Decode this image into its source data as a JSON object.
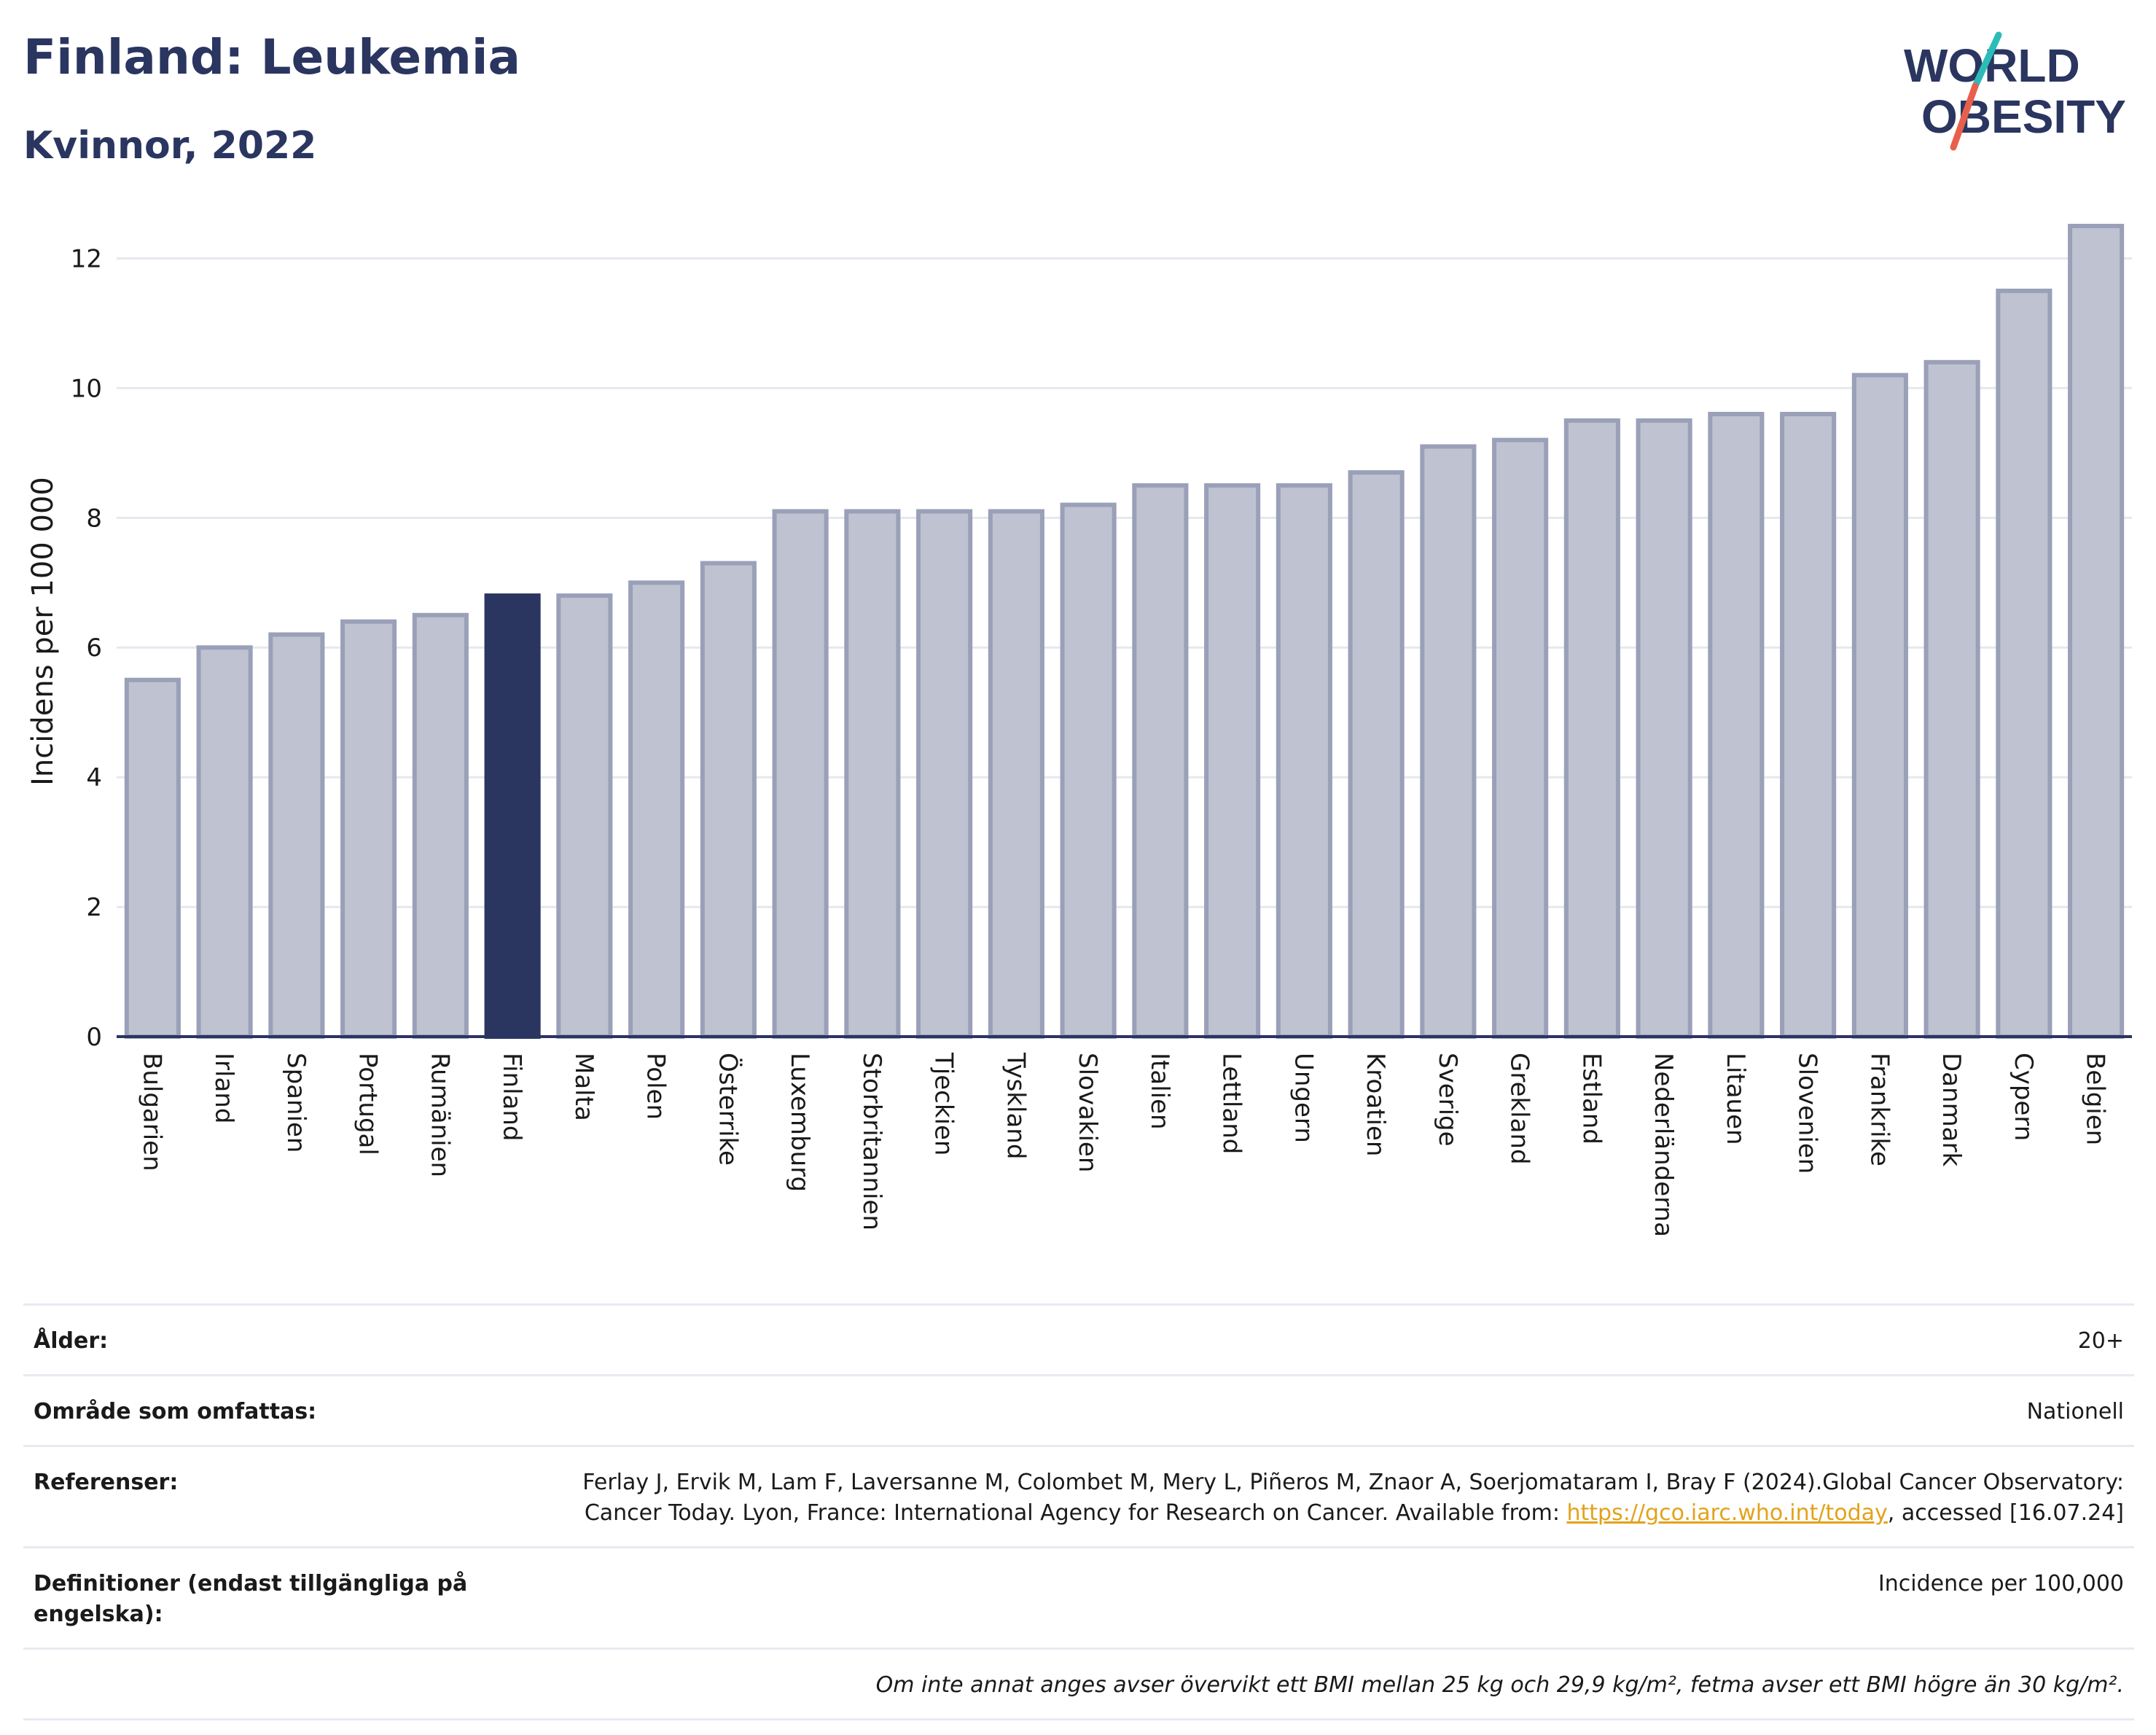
{
  "header": {
    "title": "Finland: Leukemia",
    "subtitle": "Kvinnor, 2022"
  },
  "logo": {
    "line1": "WORLD",
    "line2": "OBESITY",
    "colors": {
      "text": "#2a3560",
      "teal": "#2bbcb8",
      "red": "#e8604c"
    }
  },
  "chart_data": {
    "type": "bar",
    "categories": [
      "Bulgarien",
      "Irland",
      "Spanien",
      "Portugal",
      "Rumänien",
      "Finland",
      "Malta",
      "Polen",
      "Österrike",
      "Luxemburg",
      "Storbritannien",
      "Tjeckien",
      "Tyskland",
      "Slovakien",
      "Italien",
      "Lettland",
      "Ungern",
      "Kroatien",
      "Sverige",
      "Grekland",
      "Estland",
      "Nederländerna",
      "Litauen",
      "Slovenien",
      "Frankrike",
      "Danmark",
      "Cypern",
      "Belgien"
    ],
    "values": [
      5.5,
      6.0,
      6.2,
      6.4,
      6.5,
      6.8,
      6.8,
      7.0,
      7.3,
      8.1,
      8.1,
      8.1,
      8.1,
      8.2,
      8.5,
      8.5,
      8.5,
      8.7,
      9.1,
      9.2,
      9.5,
      9.5,
      9.6,
      9.6,
      10.2,
      10.4,
      11.5,
      12.5
    ],
    "highlight": "Finland",
    "ylabel": "Incidens per 100 000",
    "xlabel": "",
    "ylim": [
      0,
      12.5
    ],
    "yticks": [
      0,
      2,
      4,
      6,
      8,
      10,
      12
    ],
    "grid": true,
    "colors": {
      "bar": "#bfc2d0",
      "bar_stroke": "#9aa0b8",
      "highlight": "#2a3560",
      "grid": "#e6e8ee",
      "axis": "#2a3560"
    }
  },
  "meta": {
    "age_label": "Ålder:",
    "age_value": "20+",
    "area_label": "Område som omfattas:",
    "area_value": "Nationell",
    "refs_label": "Referenser:",
    "refs_text1": "Ferlay J, Ervik M, Lam F, Laversanne M, Colombet M, Mery L, Piñeros M, Znaor A, Soerjomataram I, Bray F (2024).Global Cancer Observatory: Cancer Today. Lyon, France: International Agency for Research on Cancer. Available from: ",
    "refs_link": "https://gco.iarc.who.int/today",
    "refs_text2": ", accessed [16.07.24]",
    "def_label": "Definitioner (endast tillgängliga på engelska):",
    "def_value": "Incidence per 100,000",
    "note": "Om inte annat anges avser övervikt ett BMI mellan 25 kg och 29,9 kg/m², fetma avser ett BMI högre än 30 kg/m²."
  }
}
